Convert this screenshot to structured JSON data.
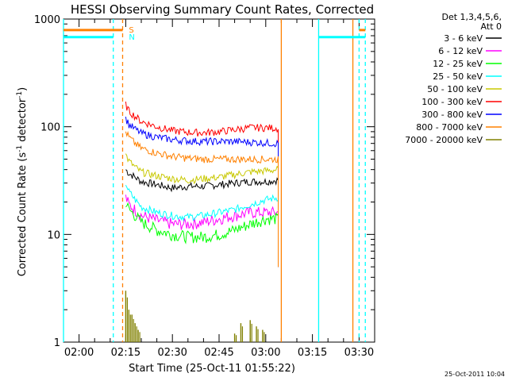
{
  "chart_data": {
    "type": "line",
    "title": "HESSI Observing Summary Count Rates, Corrected",
    "xlabel": "Start Time (25-Oct-11 01:55:22)",
    "ylabel": "Corrected Count Rate (s⁻¹ detector⁻¹)",
    "ylabel_parts": [
      "Corrected Count Rate (s",
      "-1",
      " detector",
      "-1",
      ")"
    ],
    "x_unit": "minutes",
    "xlim": [
      "01:55",
      "03:35"
    ],
    "yscale": "log",
    "ylim": [
      1,
      1000
    ],
    "x_ticks": [
      {
        "value": "02:00",
        "label": "02:00"
      },
      {
        "value": "02:15",
        "label": "02:15"
      },
      {
        "value": "02:30",
        "label": "02:30"
      },
      {
        "value": "02:45",
        "label": "02:45"
      },
      {
        "value": "03:00",
        "label": "03:00"
      },
      {
        "value": "03:15",
        "label": "03:15"
      },
      {
        "value": "03:30",
        "label": "03:30"
      }
    ],
    "y_ticks": [
      {
        "value": 1,
        "label": "1"
      },
      {
        "value": 10,
        "label": "10"
      },
      {
        "value": 100,
        "label": "100"
      },
      {
        "value": 1000,
        "label": "1000"
      }
    ],
    "legend": {
      "placement": "right",
      "header": [
        "Det 1,3,4,5,6,",
        "Att 0"
      ]
    },
    "flags": [
      {
        "label": "S",
        "color": "#ff8000",
        "y": 800
      },
      {
        "label": "N",
        "color": "#00ffff",
        "y": 690
      }
    ],
    "flag_segments": [
      {
        "color": "#ff8000",
        "y": 790,
        "x0": "01:55",
        "x1": "02:14"
      },
      {
        "color": "#00ffff",
        "y": 680,
        "x0": "01:55",
        "x1": "02:11"
      },
      {
        "color": "#00ffff",
        "y": 680,
        "x0": "03:17",
        "x1": "03:32"
      },
      {
        "color": "#ff8000",
        "y": 790,
        "x0": "03:30",
        "x1": "03:32"
      }
    ],
    "vlines": [
      {
        "x": "01:55",
        "color": "#00ffff",
        "style": "solid"
      },
      {
        "x": "02:11",
        "color": "#00ffff",
        "style": "dashed"
      },
      {
        "x": "02:14",
        "color": "#ff8000",
        "style": "dashed"
      },
      {
        "x": "03:05",
        "color": "#ff8000",
        "style": "solid"
      },
      {
        "x": "03:17",
        "color": "#00ffff",
        "style": "solid"
      },
      {
        "x": "03:28",
        "color": "#ff8000",
        "style": "solid"
      },
      {
        "x": "03:30",
        "color": "#00ffff",
        "style": "dashed"
      },
      {
        "x": "03:32",
        "color": "#00ffff",
        "style": "dashed"
      }
    ],
    "series": [
      {
        "name": "3 - 6 keV",
        "color": "#000000",
        "x": [
          "02:15",
          "02:16",
          "02:18",
          "02:20",
          "02:25",
          "02:30",
          "02:35",
          "02:40",
          "02:45",
          "02:50",
          "02:55",
          "03:00",
          "03:04"
        ],
        "y": [
          40,
          37,
          34,
          31,
          29,
          27,
          28,
          28,
          29,
          30,
          31,
          31,
          32
        ]
      },
      {
        "name": "6 - 12 keV",
        "color": "#ff00ff",
        "x": [
          "02:15",
          "02:16",
          "02:18",
          "02:20",
          "02:25",
          "02:30",
          "02:35",
          "02:40",
          "02:45",
          "02:50",
          "02:55",
          "03:00",
          "03:04"
        ],
        "y": [
          22,
          19,
          17,
          15,
          13.5,
          12.5,
          12.5,
          13,
          14,
          15,
          16,
          16,
          16
        ]
      },
      {
        "name": "12 - 25 keV",
        "color": "#00ff00",
        "x": [
          "02:15",
          "02:16",
          "02:18",
          "02:20",
          "02:25",
          "02:30",
          "02:35",
          "02:40",
          "02:45",
          "02:50",
          "02:55",
          "03:00",
          "03:04"
        ],
        "y": [
          20,
          17,
          15,
          13,
          11,
          10,
          9.5,
          9.5,
          10,
          11,
          12.5,
          14,
          14
        ]
      },
      {
        "name": "25 - 50 keV",
        "color": "#00ffff",
        "x": [
          "02:15",
          "02:16",
          "02:18",
          "02:20",
          "02:25",
          "02:30",
          "02:35",
          "02:40",
          "02:45",
          "02:50",
          "02:55",
          "03:00",
          "03:04"
        ],
        "y": [
          30,
          25,
          21,
          18,
          16,
          15,
          14.5,
          15,
          16,
          17,
          19,
          21,
          22
        ]
      },
      {
        "name": "50 - 100 keV",
        "color": "#c8c800",
        "x": [
          "02:15",
          "02:16",
          "02:18",
          "02:20",
          "02:25",
          "02:30",
          "02:35",
          "02:40",
          "02:45",
          "02:50",
          "02:55",
          "03:00",
          "03:04"
        ],
        "y": [
          55,
          48,
          42,
          38,
          35,
          33,
          32,
          33,
          34,
          36,
          38,
          39,
          40
        ]
      },
      {
        "name": "100 - 300 keV",
        "color": "#ff0000",
        "x": [
          "02:15",
          "02:16",
          "02:18",
          "02:20",
          "02:25",
          "02:30",
          "02:35",
          "02:40",
          "02:45",
          "02:50",
          "02:55",
          "03:00",
          "03:04"
        ],
        "y": [
          160,
          140,
          125,
          112,
          100,
          92,
          89,
          88,
          90,
          94,
          98,
          98,
          97
        ]
      },
      {
        "name": "300 - 800 keV",
        "color": "#0000ff",
        "x": [
          "02:15",
          "02:16",
          "02:18",
          "02:20",
          "02:25",
          "02:30",
          "02:35",
          "02:40",
          "02:45",
          "02:50",
          "02:55",
          "03:00",
          "03:04"
        ],
        "y": [
          120,
          105,
          95,
          87,
          80,
          76,
          74,
          73,
          73,
          73,
          72,
          71,
          70
        ]
      },
      {
        "name": "800 - 7000 keV",
        "color": "#ff8000",
        "x": [
          "02:15",
          "02:16",
          "02:18",
          "02:20",
          "02:25",
          "02:30",
          "02:35",
          "02:40",
          "02:45",
          "02:50",
          "02:55",
          "03:00",
          "03:04"
        ],
        "y": [
          90,
          80,
          70,
          63,
          57,
          53,
          51,
          50,
          50,
          50,
          50,
          50,
          50
        ]
      },
      {
        "name": "7000 - 20000 keV",
        "color": "#808000",
        "x": [
          "02:15",
          "02:16",
          "02:17",
          "02:18",
          "02:19",
          "02:50",
          "02:52",
          "02:55",
          "02:57",
          "02:59"
        ],
        "y": [
          3,
          2,
          1.8,
          1.5,
          1.3,
          1.2,
          1.5,
          1.6,
          1.4,
          1.3
        ]
      }
    ]
  },
  "footer": {
    "timestamp": "25-Oct-2011 10:04"
  }
}
